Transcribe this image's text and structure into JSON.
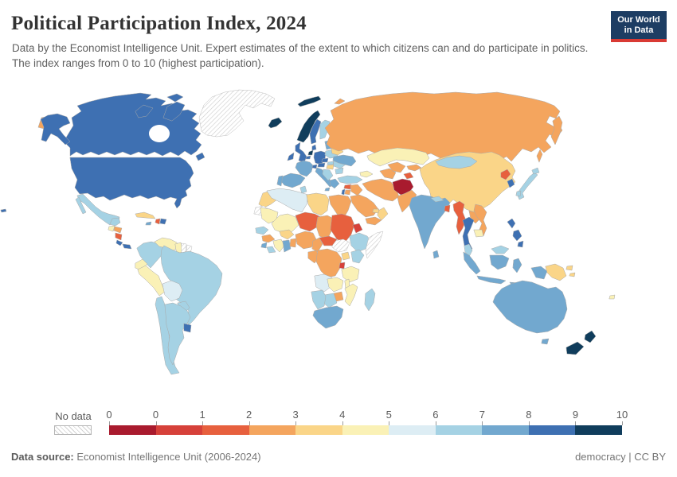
{
  "header": {
    "title": "Political Participation Index, 2024",
    "subtitle": "Data by the Economist Intelligence Unit. Expert estimates of the extent to which citizens can and do participate in politics. The index ranges from 0 to 10 (highest participation).",
    "logo": {
      "line1": "Our World",
      "line2": "in Data",
      "bg": "#1d3d63",
      "accent": "#d93a34"
    }
  },
  "legend": {
    "no_data_label": "No data",
    "ticks": [
      "0",
      "0",
      "1",
      "2",
      "3",
      "4",
      "5",
      "6",
      "7",
      "8",
      "9",
      "10"
    ],
    "bin_colors": [
      "#A91B2E",
      "#D6413A",
      "#E7603E",
      "#F4A55E",
      "#FAD588",
      "#FAF1B6",
      "#DDEDF4",
      "#A5D2E4",
      "#72A8CF",
      "#3E70B2",
      "#103D5C"
    ]
  },
  "footer": {
    "source_label": "Data source:",
    "source_text": " Economist Intelligence Unit (2006-2024)",
    "right_text": "democracy | CC BY"
  },
  "chart_data": {
    "type": "heatmap",
    "subtype": "choropleth-world-map",
    "title": "Political Participation Index, 2024",
    "value_range": [
      0,
      10
    ],
    "legend_bins": [
      "0",
      "0-1",
      "1-2",
      "2-3",
      "3-4",
      "4-5",
      "5-6",
      "6-7",
      "7-8",
      "8-9",
      "9-10"
    ],
    "note": "country value encoded as legend bin index 0-10; null = no data"
  },
  "map": {
    "countries": {
      "russia": 3,
      "canada": 9,
      "usa": 9,
      "greenland": null,
      "mexico": 7,
      "guatemala": 5,
      "honduras": 3,
      "nicaragua": 2,
      "costa-rica": 9,
      "panama": 9,
      "cuba": 4,
      "jamaica": 8,
      "haiti": 2,
      "dominican-republic": 9,
      "colombia": 7,
      "venezuela": 5,
      "guyana": 5,
      "suriname": null,
      "french-guiana": null,
      "ecuador": 5,
      "peru": 5,
      "brazil": 7,
      "bolivia": 6,
      "paraguay": 7,
      "chile": 7,
      "argentina": 7,
      "uruguay": 9,
      "iceland": 10,
      "norway": 10,
      "sweden": 9,
      "finland": 7,
      "denmark": 9,
      "uk": 9,
      "ireland": 9,
      "netherlands": 10,
      "belgium": 9,
      "germany": 9,
      "france": 8,
      "spain": 8,
      "portugal": 8,
      "italy": 8,
      "switzerland": 9,
      "austria": 9,
      "czechia": 9,
      "poland": 7,
      "slovakia": 7,
      "hungary": 4,
      "west-balkans": 7,
      "greece": 8,
      "romania": 7,
      "bulgaria": 7,
      "baltics": 8,
      "belarus": 4,
      "ukraine": 8,
      "turkey": 7,
      "caucasus": 5,
      "syria": 2,
      "israel": 9,
      "jordan": 3,
      "iraq": 3,
      "saudi-arabia": 3,
      "yemen": 3,
      "oman": 4,
      "uae": 4,
      "iran": 3,
      "afghanistan": 0,
      "pakistan": 3,
      "turkmenistan": 3,
      "uzbekistan": 3,
      "tajikistan": 2,
      "kyrgyzstan": 3,
      "kazakhstan": 5,
      "india": 8,
      "nepal": 7,
      "bangladesh": 2,
      "sri-lanka": 8,
      "china": 4,
      "mongolia": 7,
      "north-korea": 2,
      "south-korea": 9,
      "japan": 7,
      "taiwan": 7,
      "myanmar": 2,
      "thailand": 9,
      "laos": 3,
      "vietnam": 3,
      "cambodia": 5,
      "malaysia": 7,
      "philippines": 9,
      "indonesia": 8,
      "papua-new-guinea": 4,
      "solomon-islands": 4,
      "australia": 8,
      "new-zealand": 10,
      "fiji": 5,
      "morocco": 4,
      "western-sahara": null,
      "algeria": 6,
      "tunisia": 7,
      "libya": 4,
      "egypt": 3,
      "mauritania": 5,
      "mali": 5,
      "niger": 2,
      "chad": 3,
      "sudan": 2,
      "eritrea": 1,
      "ethiopia": 7,
      "somalia": null,
      "south-sudan": null,
      "senegal": 7,
      "guinea": 3,
      "sierra-leone": 8,
      "liberia": 7,
      "ivory-coast": 5,
      "ghana": 8,
      "togo-benin": 3,
      "burkina-faso": 4,
      "nigeria": 3,
      "cameroon": 3,
      "central-african-republic": 2,
      "gabon-congo": 3,
      "drc": 3,
      "uganda": 4,
      "kenya": 7,
      "rwanda-burundi": 1,
      "tanzania": 5,
      "angola": 6,
      "zambia": 5,
      "malawi": 5,
      "mozambique": 5,
      "zimbabwe": 3,
      "botswana": 7,
      "namibia": 7,
      "south-africa": 8,
      "madagascar": 7
    }
  }
}
